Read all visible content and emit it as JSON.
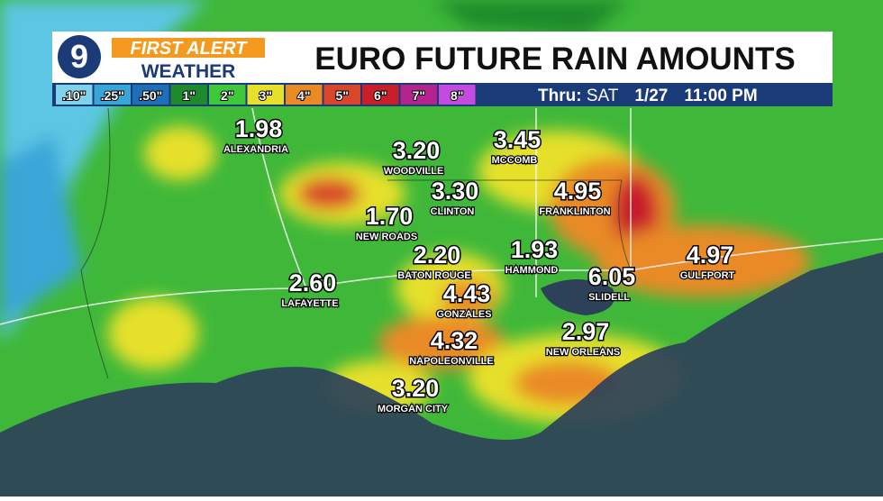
{
  "header": {
    "logo_number": "9",
    "brand_top": "FIRST ALERT",
    "brand_bottom": "WEATHER",
    "title": "EURO FUTURE RAIN AMOUNTS"
  },
  "legend": [
    {
      "label": ".10\"",
      "color": "#7fd3ea"
    },
    {
      "label": ".25\"",
      "color": "#3aa6d8"
    },
    {
      "label": ".50\"",
      "color": "#1f6fb8"
    },
    {
      "label": "1\"",
      "color": "#1d8a2c"
    },
    {
      "label": "2\"",
      "color": "#3fc83a"
    },
    {
      "label": "3\"",
      "color": "#e6e02a"
    },
    {
      "label": "4\"",
      "color": "#e98a25"
    },
    {
      "label": "5\"",
      "color": "#d9462a"
    },
    {
      "label": "6\"",
      "color": "#c81f2a"
    },
    {
      "label": "7\"",
      "color": "#b4238e"
    },
    {
      "label": "8\"",
      "color": "#c44be0"
    }
  ],
  "valid_time": {
    "prefix": "Thru:",
    "day": "SAT",
    "date": "1/27",
    "time": "11:00 PM"
  },
  "cities": [
    {
      "name": "ALEXANDRIA",
      "amount": "1.98"
    },
    {
      "name": "WOODVILLE",
      "amount": "3.20"
    },
    {
      "name": "MCCOMB",
      "amount": "3.45"
    },
    {
      "name": "CLINTON",
      "amount": "3.30"
    },
    {
      "name": "FRANKLINTON",
      "amount": "4.95"
    },
    {
      "name": "NEW ROADS",
      "amount": "1.70"
    },
    {
      "name": "BATON ROUGE",
      "amount": "2.20"
    },
    {
      "name": "HAMMOND",
      "amount": "1.93"
    },
    {
      "name": "GULFPORT",
      "amount": "4.97"
    },
    {
      "name": "SLIDELL",
      "amount": "6.05"
    },
    {
      "name": "LAFAYETTE",
      "amount": "2.60"
    },
    {
      "name": "GONZALES",
      "amount": "4.43"
    },
    {
      "name": "NEW ORLEANS",
      "amount": "2.97"
    },
    {
      "name": "NAPOLEONVILLE",
      "amount": "4.32"
    },
    {
      "name": "MORGAN CITY",
      "amount": "3.20"
    }
  ]
}
